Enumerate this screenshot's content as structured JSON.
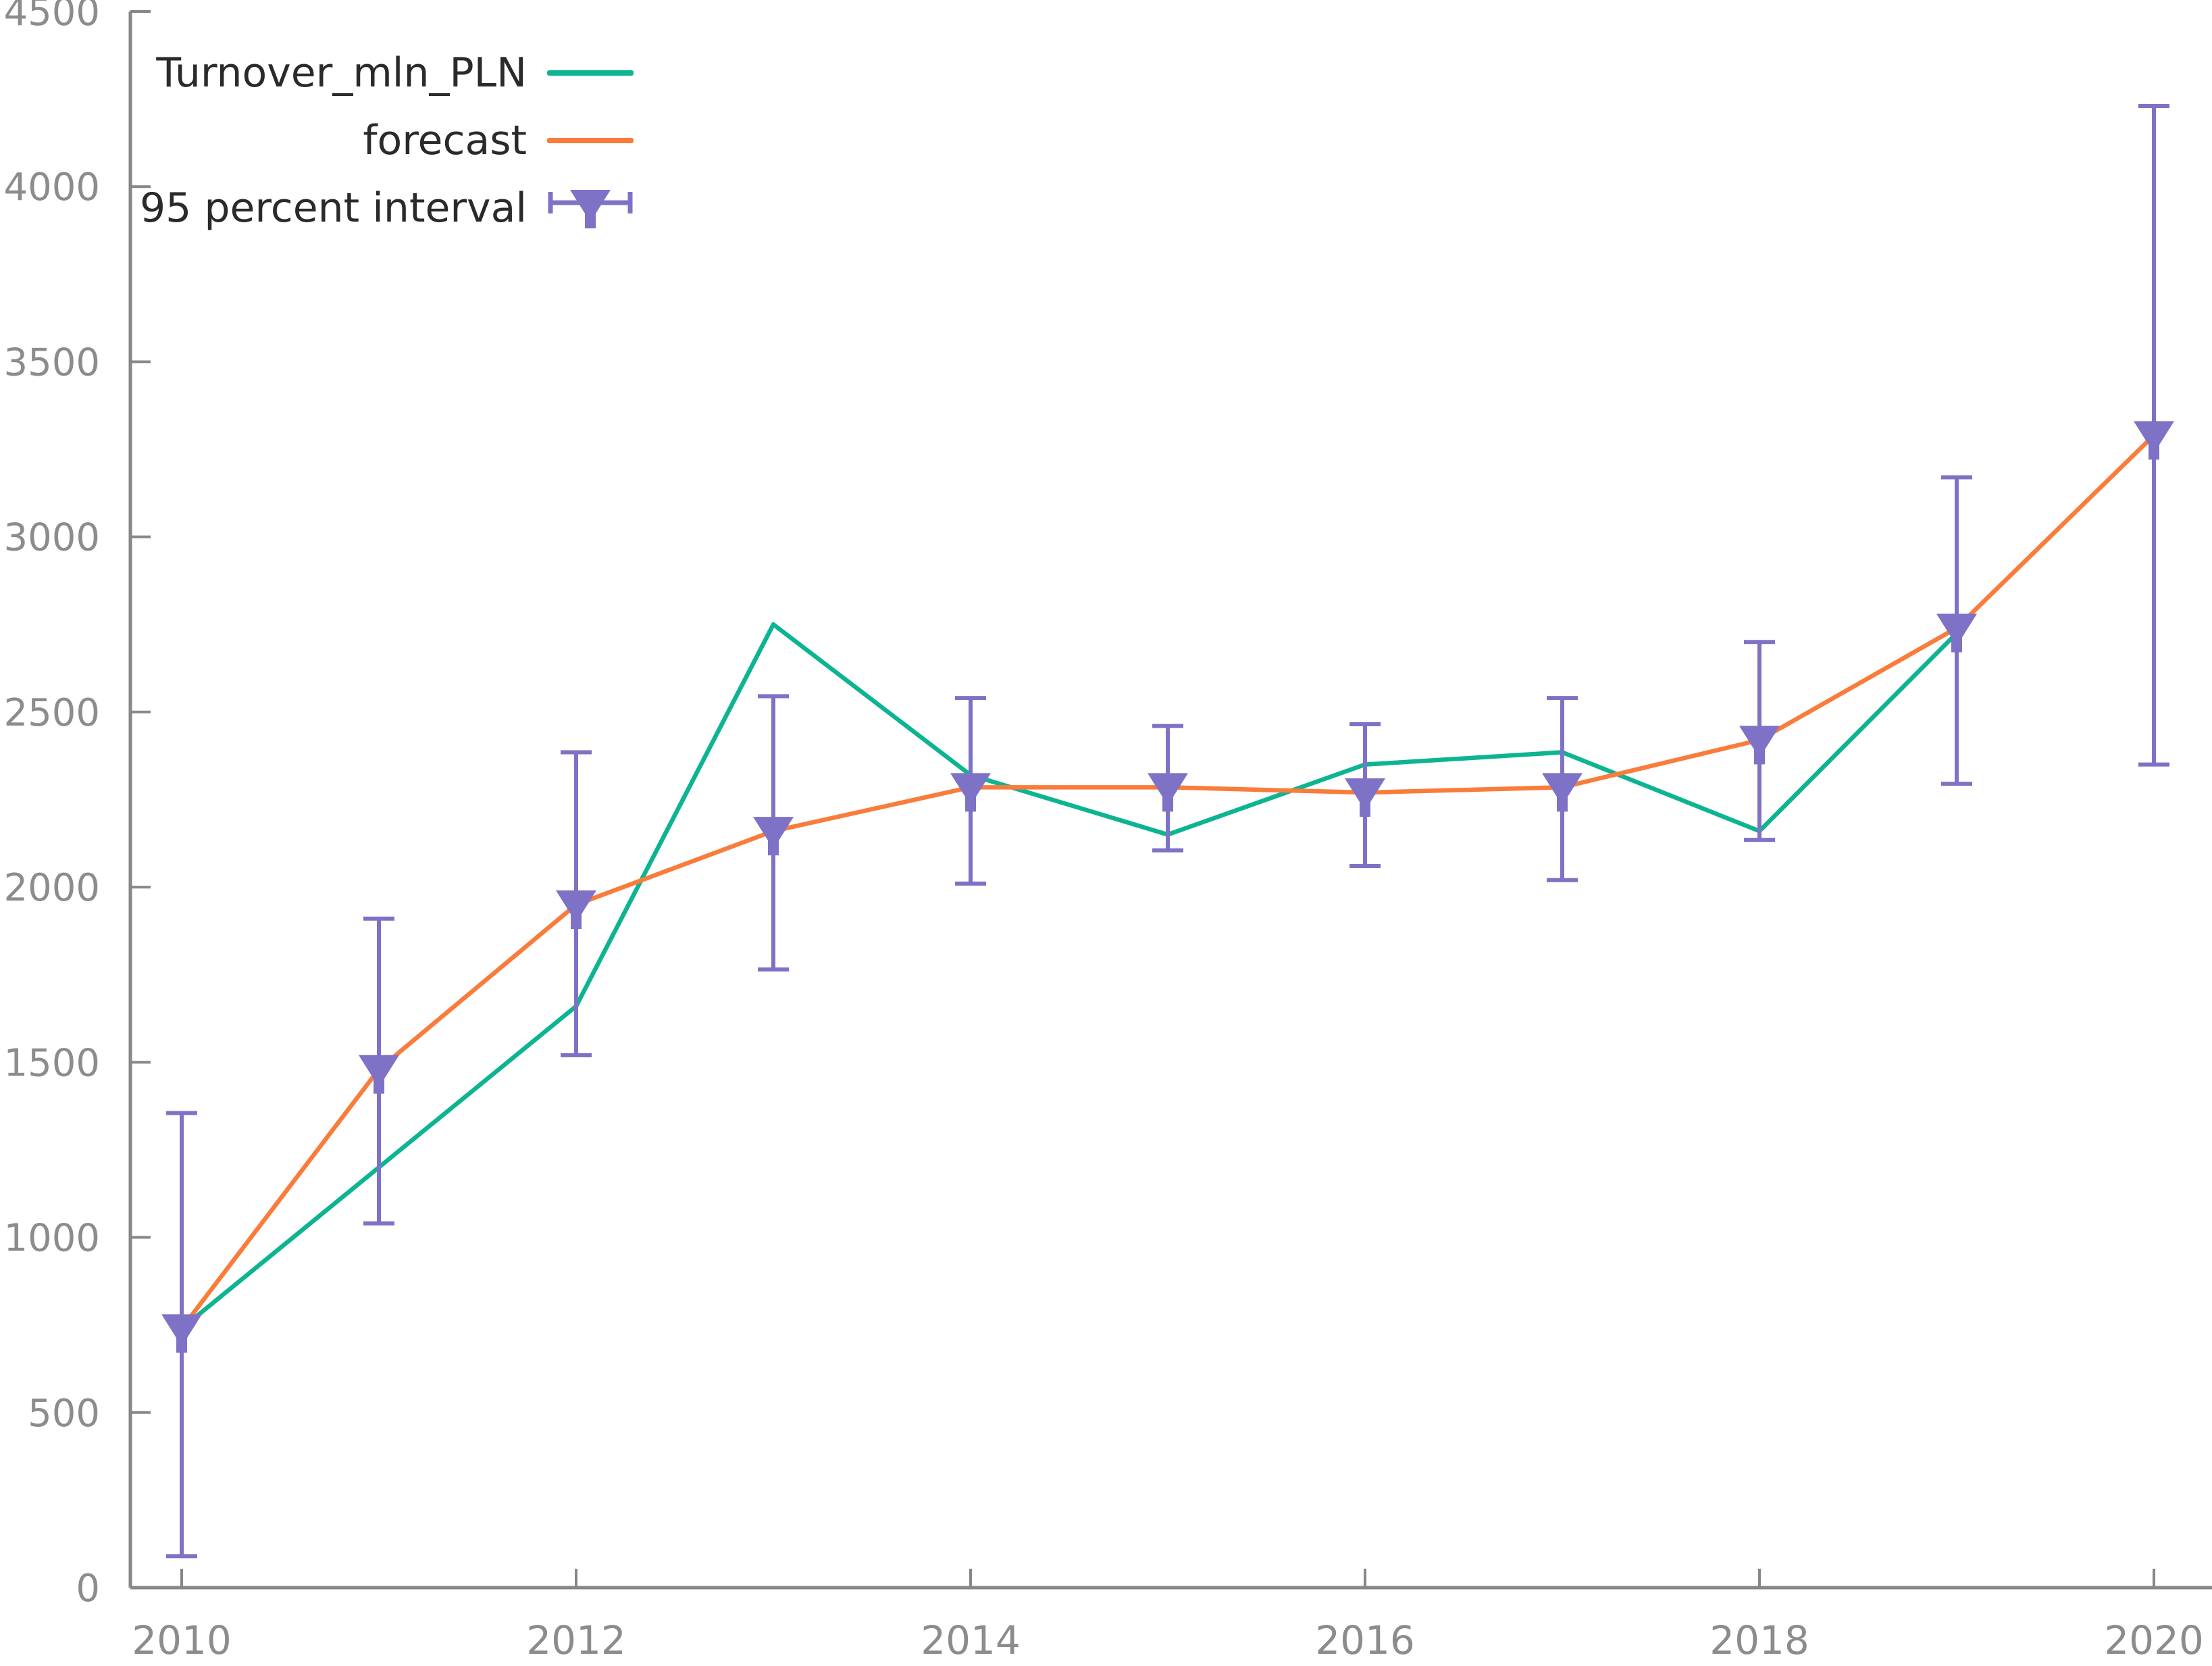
{
  "chart_data": {
    "type": "line",
    "title": "",
    "xlabel": "",
    "ylabel": "",
    "x_years": [
      2010,
      2011,
      2012,
      2013,
      2014,
      2015,
      2016,
      2017,
      2018,
      2019,
      2020
    ],
    "series": [
      {
        "name": "Turnover_mln_PLN",
        "type": "line",
        "color": "#0db492",
        "x": [
          2010,
          2011,
          2012,
          2013,
          2014,
          2015,
          2016,
          2017,
          2018,
          2019
        ],
        "values": [
          740,
          1200,
          1660,
          2750,
          2320,
          2150,
          2350,
          2385,
          2160,
          2725
        ]
      },
      {
        "name": "forecast",
        "type": "line",
        "color": "#fa7c3b",
        "x": [
          2010,
          2011,
          2012,
          2013,
          2014,
          2015,
          2016,
          2017,
          2018,
          2019,
          2020
        ],
        "values": [
          740,
          1480,
          1950,
          2160,
          2285,
          2285,
          2270,
          2285,
          2420,
          2740,
          3290
        ]
      },
      {
        "name": "95 percent interval",
        "type": "errorbar",
        "color": "#7e72c6",
        "x": [
          2010,
          2011,
          2012,
          2013,
          2014,
          2015,
          2016,
          2017,
          2018,
          2019,
          2020
        ],
        "center": [
          740,
          1480,
          1950,
          2160,
          2285,
          2285,
          2270,
          2285,
          2420,
          2740,
          3290
        ],
        "low": [
          90,
          1040,
          1520,
          1765,
          2010,
          2105,
          2060,
          2020,
          2135,
          2295,
          2350
        ],
        "high": [
          1355,
          1910,
          2385,
          2545,
          2540,
          2460,
          2465,
          2540,
          2700,
          3170,
          4230
        ]
      }
    ],
    "xticks": [
      "2010",
      "2012",
      "2014",
      "2016",
      "2018",
      "2020"
    ],
    "yticks": [
      "0",
      "500",
      "1000",
      "1500",
      "2000",
      "2500",
      "3000",
      "3500",
      "4000",
      "4500"
    ],
    "xlim": [
      2009.74,
      2020.29
    ],
    "ylim": [
      0,
      4500
    ],
    "grid": false,
    "legend_position": "top-left"
  },
  "colors": {
    "axis": "#878787",
    "tick_label": "#8c8c8c",
    "legend_text": "#2a2a2a",
    "background": "#ffffff"
  }
}
